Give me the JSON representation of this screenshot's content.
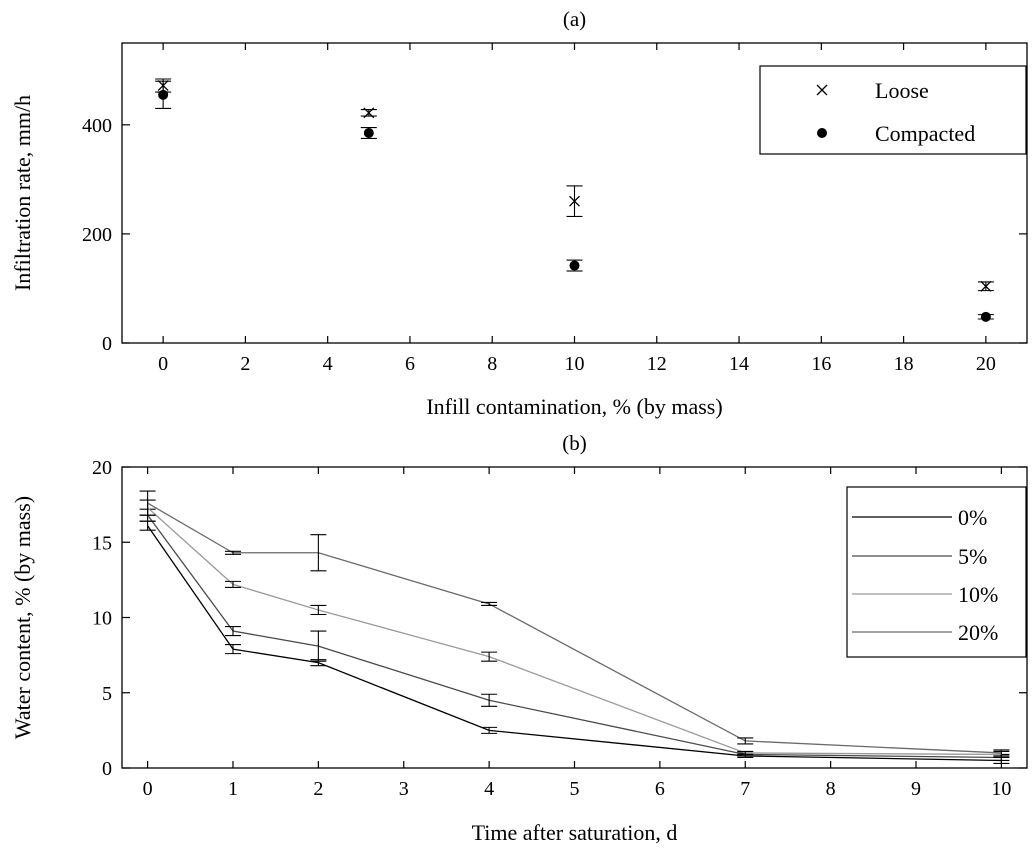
{
  "chart_data": [
    {
      "id": "a",
      "type": "scatter",
      "title": "(a)",
      "xlabel": "Infill contamination, % (by mass)",
      "ylabel": "Infiltration rate,  mm/h",
      "xlim": [
        -1,
        21
      ],
      "ylim": [
        0,
        550
      ],
      "xticks": [
        0,
        2,
        4,
        6,
        8,
        10,
        12,
        14,
        16,
        18,
        20
      ],
      "yticks": [
        0,
        200,
        400
      ],
      "legend": "top-right",
      "series": [
        {
          "name": "Loose",
          "marker": "x",
          "color": "#000000",
          "x": [
            0,
            5,
            10,
            20
          ],
          "y": [
            472,
            422,
            260,
            104
          ],
          "err": [
            12,
            6,
            28,
            8
          ]
        },
        {
          "name": "Compacted",
          "marker": "dot",
          "color": "#000000",
          "x": [
            0,
            5,
            10,
            20
          ],
          "y": [
            455,
            385,
            142,
            48
          ],
          "err": [
            25,
            10,
            10,
            4
          ]
        }
      ]
    },
    {
      "id": "b",
      "type": "line",
      "title": "(b)",
      "xlabel": "Time after saturation, d",
      "ylabel": "Water content, %  (by mass)",
      "xlim": [
        -0.3,
        10.3
      ],
      "ylim": [
        0,
        20
      ],
      "xtick_labels": [
        "0",
        "1",
        "2",
        "3",
        "4",
        "5",
        "6",
        "7",
        "8",
        "9",
        "10"
      ],
      "yticks": [
        0,
        5,
        10,
        15,
        20
      ],
      "legend": "top-right",
      "series": [
        {
          "name": "0%",
          "color": "#000000",
          "x": [
            0,
            1,
            2,
            4,
            7,
            10
          ],
          "y": [
            16.1,
            7.9,
            7.0,
            2.5,
            0.8,
            0.5
          ],
          "err": [
            0.3,
            0.3,
            0.2,
            0.2,
            0.1,
            0.2
          ]
        },
        {
          "name": "5%",
          "color": "#4a4a4a",
          "x": [
            0,
            1,
            2,
            4,
            7,
            10
          ],
          "y": [
            16.8,
            9.1,
            8.1,
            4.5,
            0.9,
            0.7
          ],
          "err": [
            0.4,
            0.3,
            1.0,
            0.4,
            0.1,
            0.2
          ]
        },
        {
          "name": "10%",
          "color": "#9a9a9a",
          "x": [
            0,
            1,
            2,
            4,
            7,
            10
          ],
          "y": [
            17.3,
            12.2,
            10.5,
            7.4,
            1.0,
            0.9
          ],
          "err": [
            0.5,
            0.2,
            0.3,
            0.3,
            0.1,
            0.2
          ]
        },
        {
          "name": "20%",
          "color": "#6a6a6a",
          "x": [
            0,
            1,
            2,
            4,
            7,
            10
          ],
          "y": [
            17.6,
            14.3,
            14.3,
            10.9,
            1.8,
            1.0
          ],
          "err": [
            0.8,
            0.1,
            1.2,
            0.1,
            0.2,
            0.2
          ]
        }
      ]
    }
  ]
}
